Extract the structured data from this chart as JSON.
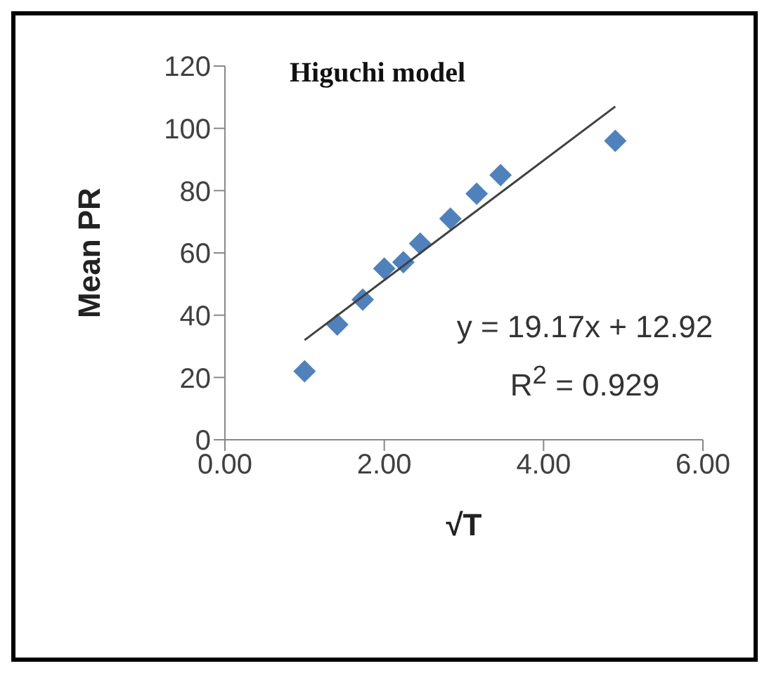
{
  "chart_data": {
    "type": "scatter",
    "title": "Higuchi model",
    "xlabel": "√T",
    "ylabel": "Mean PR",
    "annotations": [
      "y = 19.17x + 12.92",
      "R$^{2}$ = 0.929"
    ],
    "series": [
      {
        "color": "#4f81bd",
        "marker": "diamond",
        "x": [
          1,
          1.41,
          1.73,
          2,
          2.24,
          2.45,
          2.83,
          3.16,
          3.46,
          4.9
        ],
        "values": [
          22,
          37,
          45,
          55,
          57,
          63,
          71,
          79,
          85,
          96
        ]
      },
      {
        "type": "line",
        "color": "#404040",
        "marker": "none",
        "x": [
          1,
          4.9
        ],
        "values": [
          32,
          107
        ]
      }
    ],
    "xlim": [
      0,
      6
    ],
    "xticks": [
      {
        "value": 0,
        "label": "0.00"
      },
      {
        "value": 2,
        "label": "2.00"
      },
      {
        "value": 4,
        "label": "4.00"
      },
      {
        "value": 6,
        "label": "6.00"
      }
    ],
    "ylim": [
      0,
      120
    ],
    "yticks": [
      0,
      20,
      40,
      60,
      80,
      100,
      120
    ],
    "grid": false
  }
}
